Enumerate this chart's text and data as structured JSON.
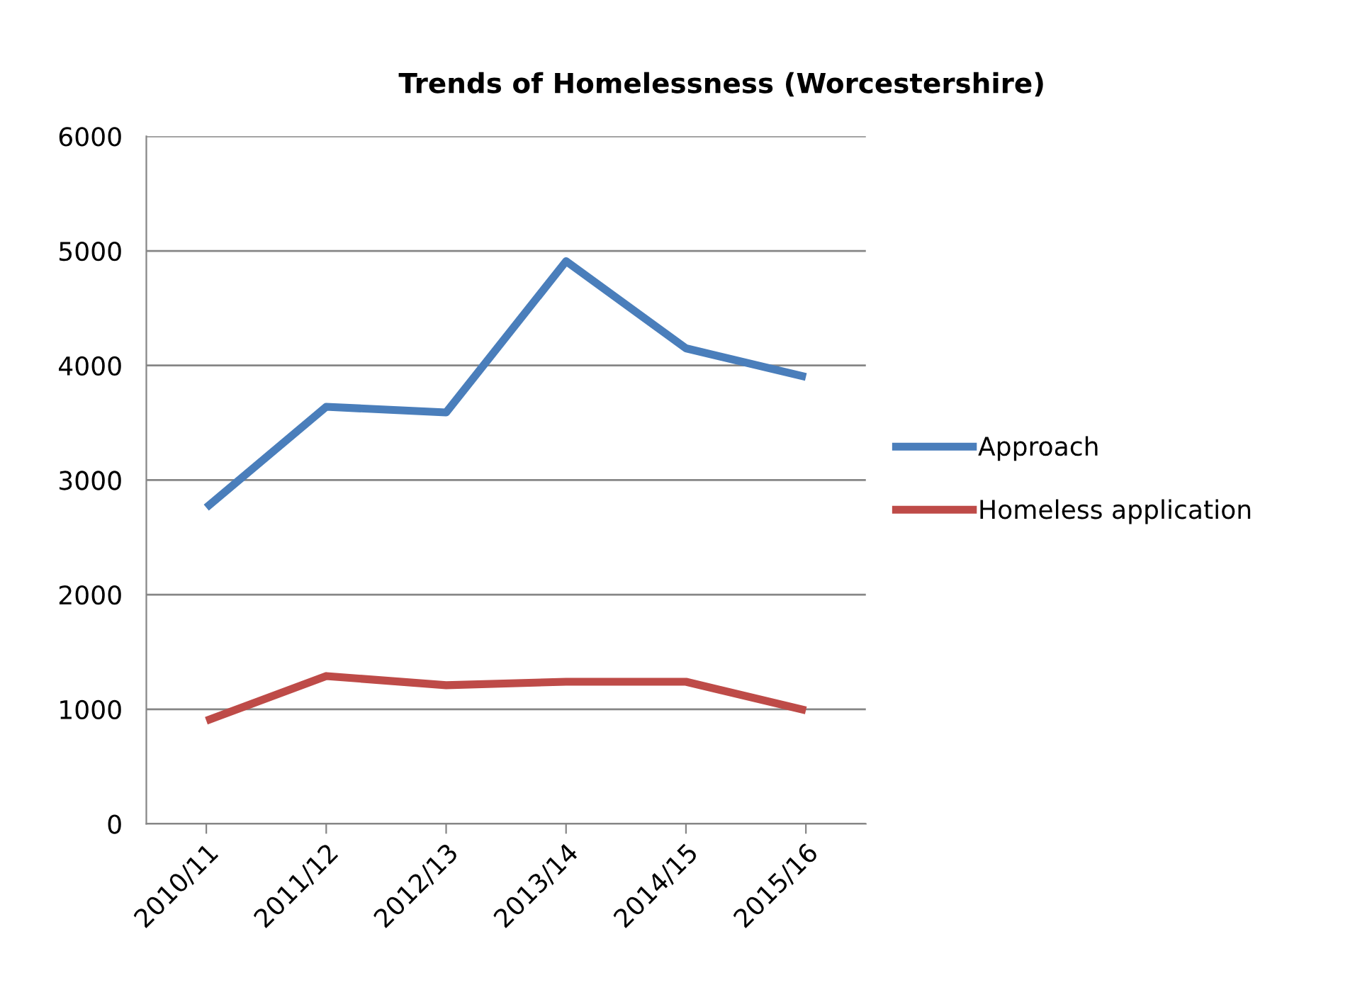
{
  "chart_data": {
    "type": "line",
    "title": "Trends of Homelessness (Worcestershire)",
    "categories": [
      "2010/11",
      "2011/12",
      "2012/13",
      "2013/14",
      "2014/15",
      "2015/16"
    ],
    "series": [
      {
        "name": "Approach",
        "color": "#4a7ebb",
        "values": [
          2760,
          3640,
          3590,
          4910,
          4150,
          3900
        ]
      },
      {
        "name": "Homeless application",
        "color": "#be4b48",
        "values": [
          900,
          1290,
          1210,
          1240,
          1240,
          990
        ]
      }
    ],
    "ylim": [
      0,
      6000
    ],
    "yticks": [
      0,
      1000,
      2000,
      3000,
      4000,
      5000,
      6000
    ],
    "grid": "y",
    "legend": "right",
    "marker": "none",
    "line_style": "solid"
  }
}
